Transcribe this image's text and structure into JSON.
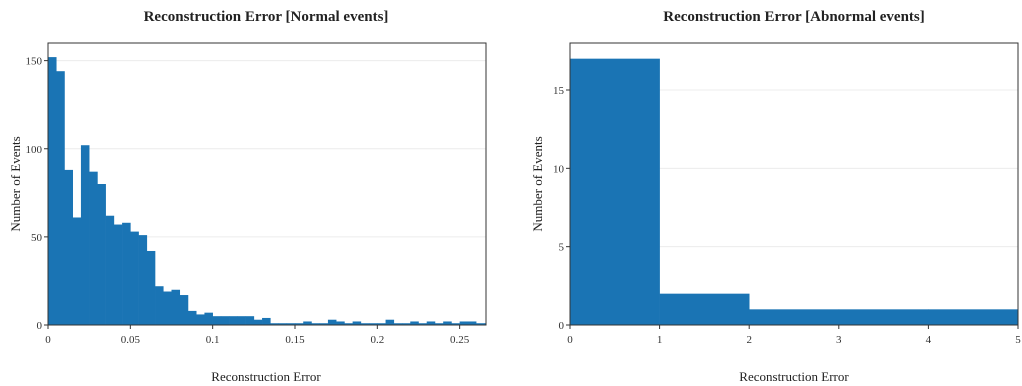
{
  "colors": {
    "bar": "#1a74b4"
  },
  "chart_data": [
    {
      "type": "bar",
      "title": "Reconstruction Error [Normal events]",
      "xlabel": "Reconstruction Error",
      "ylabel": "Number of Events",
      "bin_width": 0.005,
      "x_start": 0,
      "xlim": [
        0,
        0.266
      ],
      "ylim": [
        0,
        160
      ],
      "xticks": [
        0,
        0.05,
        0.1,
        0.15,
        0.2,
        0.25
      ],
      "xtick_labels": [
        "0",
        "0.05",
        "0.1",
        "0.15",
        "0.2",
        "0.25"
      ],
      "yticks": [
        0,
        50,
        100,
        150
      ],
      "ytick_labels": [
        "0",
        "50",
        "100",
        "150"
      ],
      "grid": true,
      "values": [
        152,
        144,
        88,
        61,
        102,
        87,
        80,
        62,
        57,
        58,
        53,
        51,
        42,
        22,
        19,
        20,
        17,
        8,
        6,
        7,
        5,
        5,
        5,
        5,
        5,
        3,
        4,
        1,
        1,
        1,
        1,
        2,
        1,
        1,
        3,
        2,
        1,
        2,
        1,
        1,
        1,
        3,
        1,
        1,
        2,
        1,
        2,
        1,
        2,
        1,
        2,
        2,
        1,
        1,
        1,
        2,
        2,
        1
      ]
    },
    {
      "type": "bar",
      "title": "Reconstruction Error [Abnormal events]",
      "xlabel": "Reconstruction Error",
      "ylabel": "Number of Events",
      "bin_width": 1,
      "x_start": 0,
      "xlim": [
        0,
        5
      ],
      "ylim": [
        0,
        18
      ],
      "xticks": [
        0,
        1,
        2,
        3,
        4,
        5
      ],
      "xtick_labels": [
        "0",
        "1",
        "2",
        "3",
        "4",
        "5"
      ],
      "yticks": [
        0,
        5,
        10,
        15
      ],
      "ytick_labels": [
        "0",
        "5",
        "10",
        "15"
      ],
      "grid": true,
      "values": [
        17,
        2,
        1,
        1,
        1
      ]
    }
  ]
}
